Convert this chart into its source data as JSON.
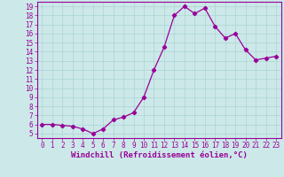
{
  "x": [
    0,
    1,
    2,
    3,
    4,
    5,
    6,
    7,
    8,
    9,
    10,
    11,
    12,
    13,
    14,
    15,
    16,
    17,
    18,
    19,
    20,
    21,
    22,
    23
  ],
  "y": [
    6.0,
    6.0,
    5.9,
    5.8,
    5.5,
    5.0,
    5.5,
    6.5,
    6.8,
    7.3,
    9.0,
    12.0,
    14.5,
    18.0,
    19.0,
    18.2,
    18.8,
    16.8,
    15.5,
    16.0,
    14.2,
    13.1,
    13.3,
    13.5
  ],
  "line_color": "#990099",
  "marker": "D",
  "marker_size": 2.2,
  "bg_color": "#cce8e8",
  "grid_color": "#aad4d4",
  "xlabel": "Windchill (Refroidissement éolien,°C)",
  "xlim": [
    -0.5,
    23.5
  ],
  "ylim": [
    4.5,
    19.5
  ],
  "yticks": [
    5,
    6,
    7,
    8,
    9,
    10,
    11,
    12,
    13,
    14,
    15,
    16,
    17,
    18,
    19
  ],
  "xticks": [
    0,
    1,
    2,
    3,
    4,
    5,
    6,
    7,
    8,
    9,
    10,
    11,
    12,
    13,
    14,
    15,
    16,
    17,
    18,
    19,
    20,
    21,
    22,
    23
  ],
  "tick_color": "#990099",
  "axis_color": "#990099",
  "label_color": "#990099",
  "label_fontsize": 6.5,
  "tick_fontsize": 5.5
}
